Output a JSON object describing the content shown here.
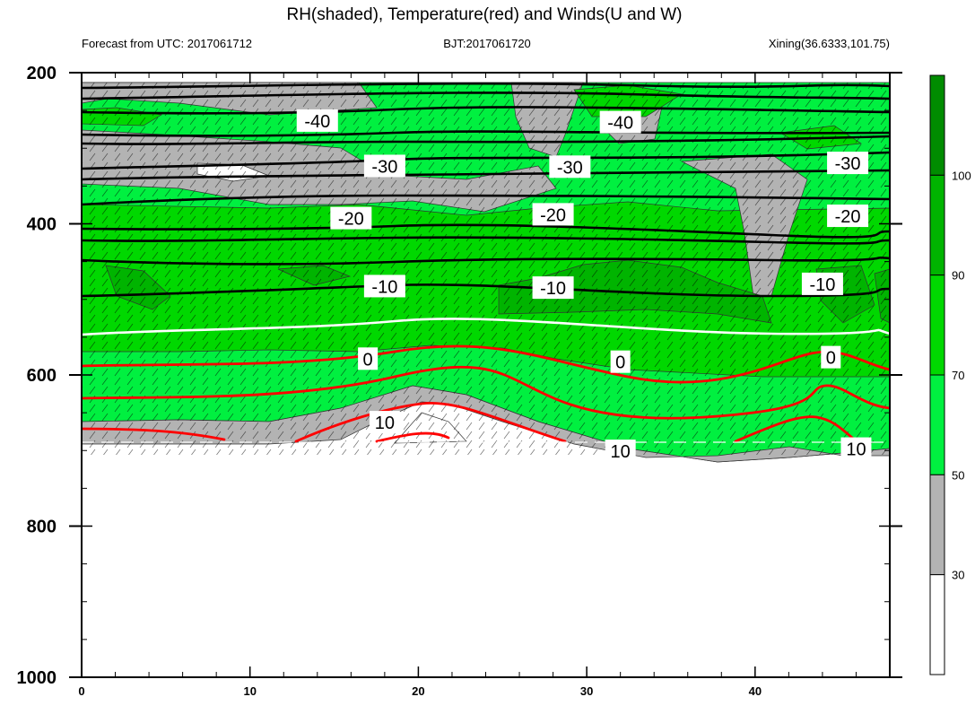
{
  "header": {
    "title": "RH(shaded), Temperature(red) and Winds(U and W)",
    "left": "Forecast from UTC: 2017061712",
    "center": "BJT:2017061720",
    "right": "Xining(36.6333,101.75)"
  },
  "chart_data": {
    "type": "contour",
    "x_ticks": [
      "0",
      "10",
      "20",
      "30",
      "40"
    ],
    "x_tick_values": [
      0,
      10,
      20,
      30,
      40
    ],
    "xlim": [
      0,
      48
    ],
    "y_ticks": [
      "200",
      "400",
      "600",
      "800",
      "1000"
    ],
    "y_tick_values": [
      200,
      400,
      600,
      800,
      1000
    ],
    "ylim": [
      200,
      1000
    ],
    "y_axis": "pressure (hPa), inverted",
    "colorbar": {
      "levels": [
        "30",
        "50",
        "70",
        "90",
        "100"
      ],
      "level_values": [
        30,
        50,
        70,
        90,
        100
      ],
      "colors": [
        "#ffffff",
        "#b3b3b3",
        "#00f040",
        "#00d800",
        "#00b400",
        "#008c00"
      ]
    },
    "temperature_contours": [
      {
        "label": "-40",
        "value": -40,
        "color": "#000000"
      },
      {
        "label": "-30",
        "value": -30,
        "color": "#000000"
      },
      {
        "label": "-20",
        "value": -20,
        "color": "#000000"
      },
      {
        "label": "-10",
        "value": -10,
        "color": "#000000"
      },
      {
        "label": "0",
        "value": 0,
        "color": "#ffffff"
      },
      {
        "label": "10",
        "value": 10,
        "color": "#ff0000"
      }
    ],
    "contour_labels": [
      {
        "text": "-40",
        "x": 14.0,
        "p": 264
      },
      {
        "text": "-40",
        "x": 32.0,
        "p": 266
      },
      {
        "text": "-30",
        "x": 18.0,
        "p": 324
      },
      {
        "text": "-30",
        "x": 29.0,
        "p": 325
      },
      {
        "text": "-30",
        "x": 45.5,
        "p": 320
      },
      {
        "text": "-20",
        "x": 16.0,
        "p": 393
      },
      {
        "text": "-20",
        "x": 28.0,
        "p": 388
      },
      {
        "text": "-20",
        "x": 45.5,
        "p": 390
      },
      {
        "text": "-10",
        "x": 18.0,
        "p": 483
      },
      {
        "text": "-10",
        "x": 28.0,
        "p": 485
      },
      {
        "text": "-10",
        "x": 44.0,
        "p": 480
      },
      {
        "text": "0",
        "x": 17.0,
        "p": 579
      },
      {
        "text": "0",
        "x": 32.0,
        "p": 583
      },
      {
        "text": "0",
        "x": 44.5,
        "p": 577
      },
      {
        "text": "10",
        "x": 18.0,
        "p": 663
      },
      {
        "text": "10",
        "x": 32.0,
        "p": 701
      },
      {
        "text": "10",
        "x": 46.0,
        "p": 698
      }
    ]
  }
}
